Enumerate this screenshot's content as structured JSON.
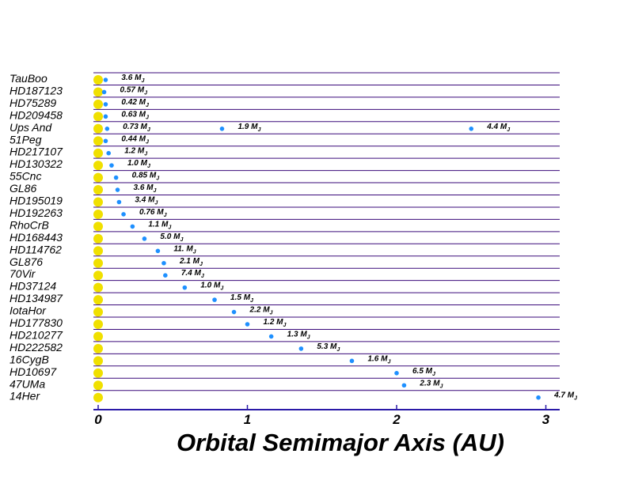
{
  "chart_data": {
    "type": "scatter",
    "xlabel": "Orbital Semimajor Axis  (AU)",
    "xlim": [
      0,
      3.1
    ],
    "xticks": [
      0,
      1,
      2,
      3
    ],
    "mass_unit": "M",
    "mass_unit_sub": "J",
    "colors": {
      "star": "#f0e000",
      "planet": "#1e90ff",
      "row_line": "#3a0a7a",
      "axis": "#2a1aa8"
    },
    "systems": [
      {
        "name": "TauBoo",
        "planets": [
          {
            "a": 0.05,
            "mass": "3.6"
          }
        ]
      },
      {
        "name": "HD187123",
        "planets": [
          {
            "a": 0.04,
            "mass": "0.57"
          }
        ]
      },
      {
        "name": "HD75289",
        "planets": [
          {
            "a": 0.05,
            "mass": "0.42"
          }
        ]
      },
      {
        "name": "HD209458",
        "planets": [
          {
            "a": 0.05,
            "mass": "0.63"
          }
        ]
      },
      {
        "name": "Ups And",
        "planets": [
          {
            "a": 0.06,
            "mass": "0.73"
          },
          {
            "a": 0.83,
            "mass": "1.9"
          },
          {
            "a": 2.5,
            "mass": "4.4"
          }
        ]
      },
      {
        "name": "51Peg",
        "planets": [
          {
            "a": 0.05,
            "mass": "0.44"
          }
        ]
      },
      {
        "name": "HD217107",
        "planets": [
          {
            "a": 0.07,
            "mass": "1.2"
          }
        ]
      },
      {
        "name": "HD130322",
        "planets": [
          {
            "a": 0.09,
            "mass": "1.0"
          }
        ]
      },
      {
        "name": "55Cnc",
        "planets": [
          {
            "a": 0.12,
            "mass": "0.85"
          }
        ]
      },
      {
        "name": "GL86",
        "planets": [
          {
            "a": 0.13,
            "mass": "3.6"
          }
        ]
      },
      {
        "name": "HD195019",
        "planets": [
          {
            "a": 0.14,
            "mass": "3.4"
          }
        ]
      },
      {
        "name": "HD192263",
        "planets": [
          {
            "a": 0.17,
            "mass": "0.76"
          }
        ]
      },
      {
        "name": "RhoCrB",
        "planets": [
          {
            "a": 0.23,
            "mass": "1.1"
          }
        ]
      },
      {
        "name": "HD168443",
        "planets": [
          {
            "a": 0.31,
            "mass": "5.0"
          }
        ]
      },
      {
        "name": "HD114762",
        "planets": [
          {
            "a": 0.4,
            "mass": "11."
          }
        ]
      },
      {
        "name": "GL876",
        "planets": [
          {
            "a": 0.44,
            "mass": "2.1"
          }
        ]
      },
      {
        "name": "70Vir",
        "planets": [
          {
            "a": 0.45,
            "mass": "7.4"
          }
        ]
      },
      {
        "name": "HD37124",
        "planets": [
          {
            "a": 0.58,
            "mass": "1.0"
          }
        ]
      },
      {
        "name": "HD134987",
        "planets": [
          {
            "a": 0.78,
            "mass": "1.5"
          }
        ]
      },
      {
        "name": "IotaHor",
        "planets": [
          {
            "a": 0.91,
            "mass": "2.2"
          }
        ]
      },
      {
        "name": "HD177830",
        "planets": [
          {
            "a": 1.0,
            "mass": "1.2"
          }
        ]
      },
      {
        "name": "HD210277",
        "planets": [
          {
            "a": 1.16,
            "mass": "1.3"
          }
        ]
      },
      {
        "name": "HD222582",
        "planets": [
          {
            "a": 1.36,
            "mass": "5.3"
          }
        ]
      },
      {
        "name": "16CygB",
        "planets": [
          {
            "a": 1.7,
            "mass": "1.6"
          }
        ]
      },
      {
        "name": "HD10697",
        "planets": [
          {
            "a": 2.0,
            "mass": "6.5"
          }
        ]
      },
      {
        "name": "47UMa",
        "planets": [
          {
            "a": 2.05,
            "mass": "2.3"
          }
        ]
      },
      {
        "name": "14Her",
        "planets": [
          {
            "a": 2.95,
            "mass": "4.7"
          }
        ]
      }
    ]
  }
}
